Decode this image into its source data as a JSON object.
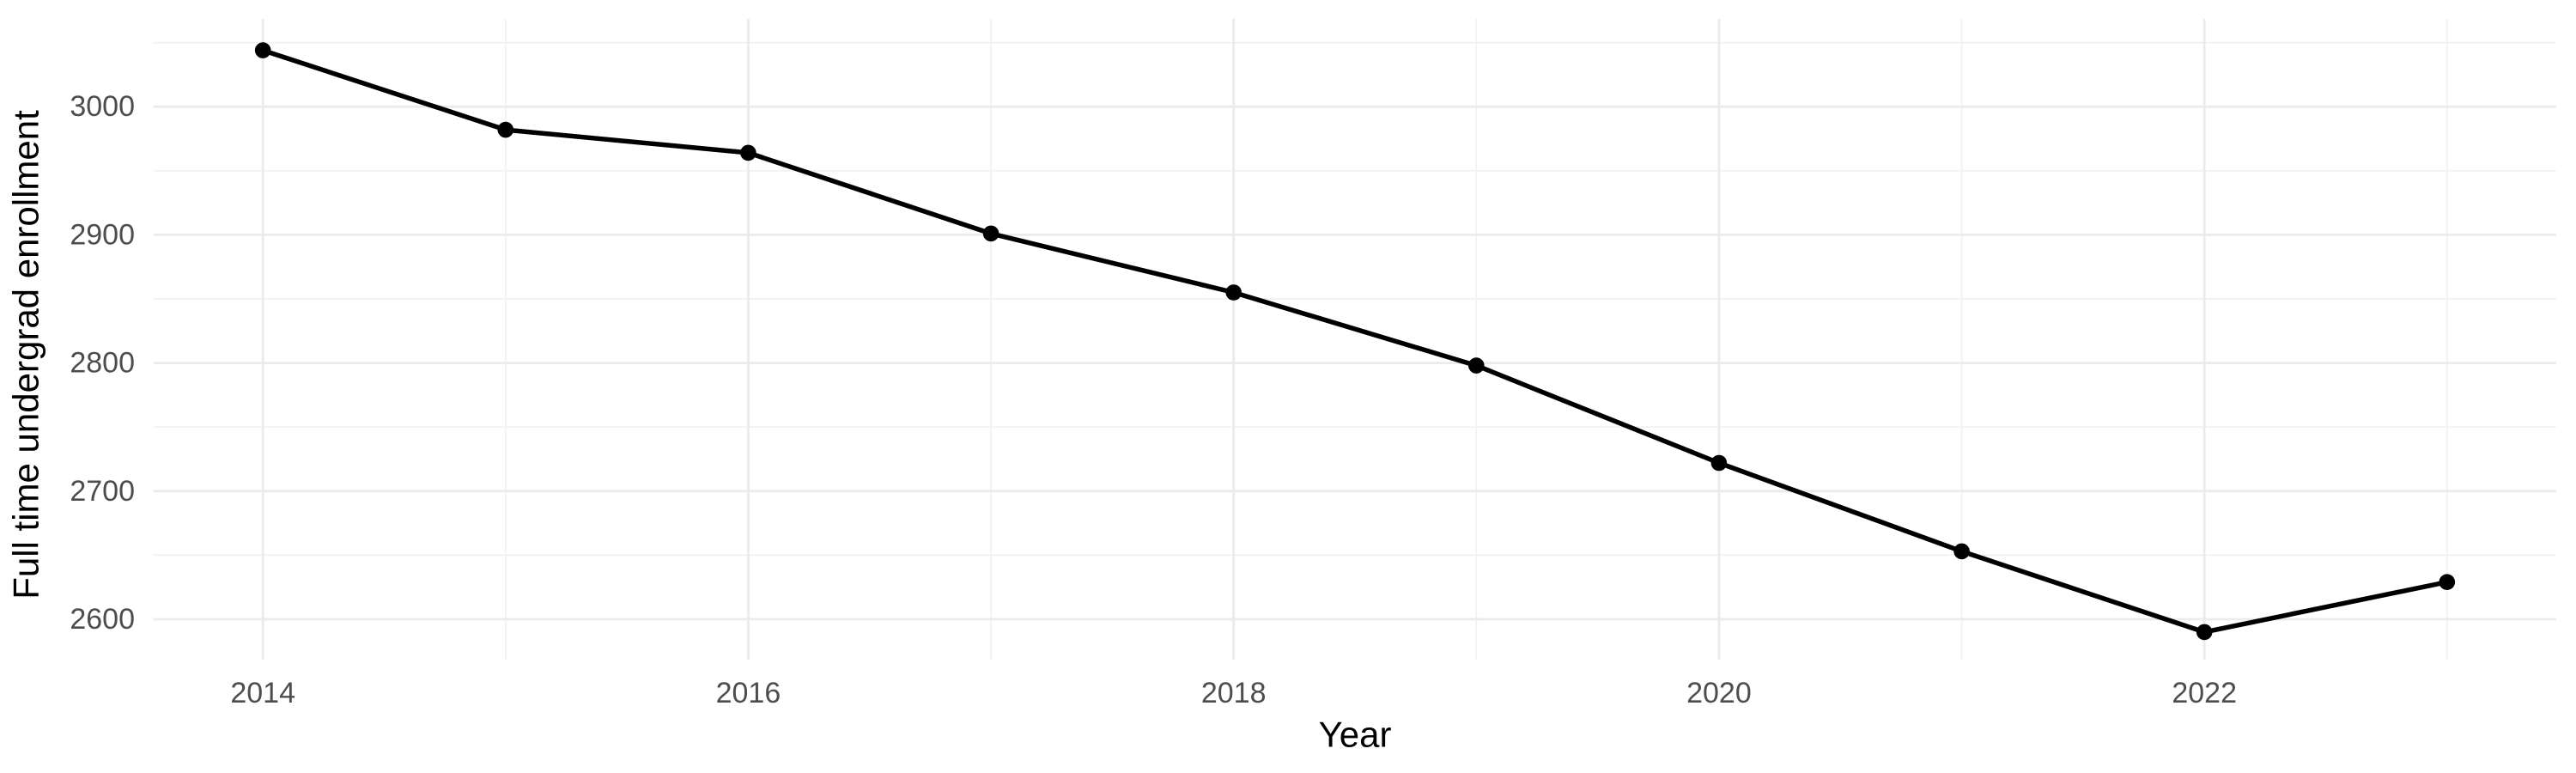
{
  "figure": {
    "background_color": "#ffffff"
  },
  "chart_data": {
    "type": "line",
    "title": "",
    "xlabel": "Year",
    "ylabel": "Full time undergrad enrollment",
    "x": [
      2014,
      2015,
      2016,
      2017,
      2018,
      2019,
      2020,
      2021,
      2022,
      2023
    ],
    "values": [
      3044,
      2982,
      2964,
      2901,
      2855,
      2798,
      2722,
      2653,
      2590,
      2629
    ],
    "x_major_ticks": [
      2014,
      2016,
      2018,
      2020,
      2022
    ],
    "x_major_tick_labels": [
      "2014",
      "2016",
      "2018",
      "2020",
      "2022"
    ],
    "x_minor_ticks": [
      2015,
      2017,
      2019,
      2021,
      2023
    ],
    "y_major_ticks": [
      2600,
      2700,
      2800,
      2900,
      3000
    ],
    "y_major_tick_labels": [
      "2600",
      "2700",
      "2800",
      "2900",
      "3000"
    ],
    "y_minor_ticks": [
      2650,
      2750,
      2850,
      2950,
      3050
    ],
    "xlim": [
      2013.55,
      2023.45
    ],
    "ylim": [
      2568.5,
      3068.5
    ],
    "grid": "major-and-minor",
    "legend": "none",
    "style": {
      "line_color": "#000000",
      "point_color": "#000000",
      "major_grid_color": "#EBEBEB",
      "minor_grid_color": "#F1F1F1",
      "tick_label_color": "#4D4D4D",
      "axis_title_color": "#000000"
    }
  }
}
